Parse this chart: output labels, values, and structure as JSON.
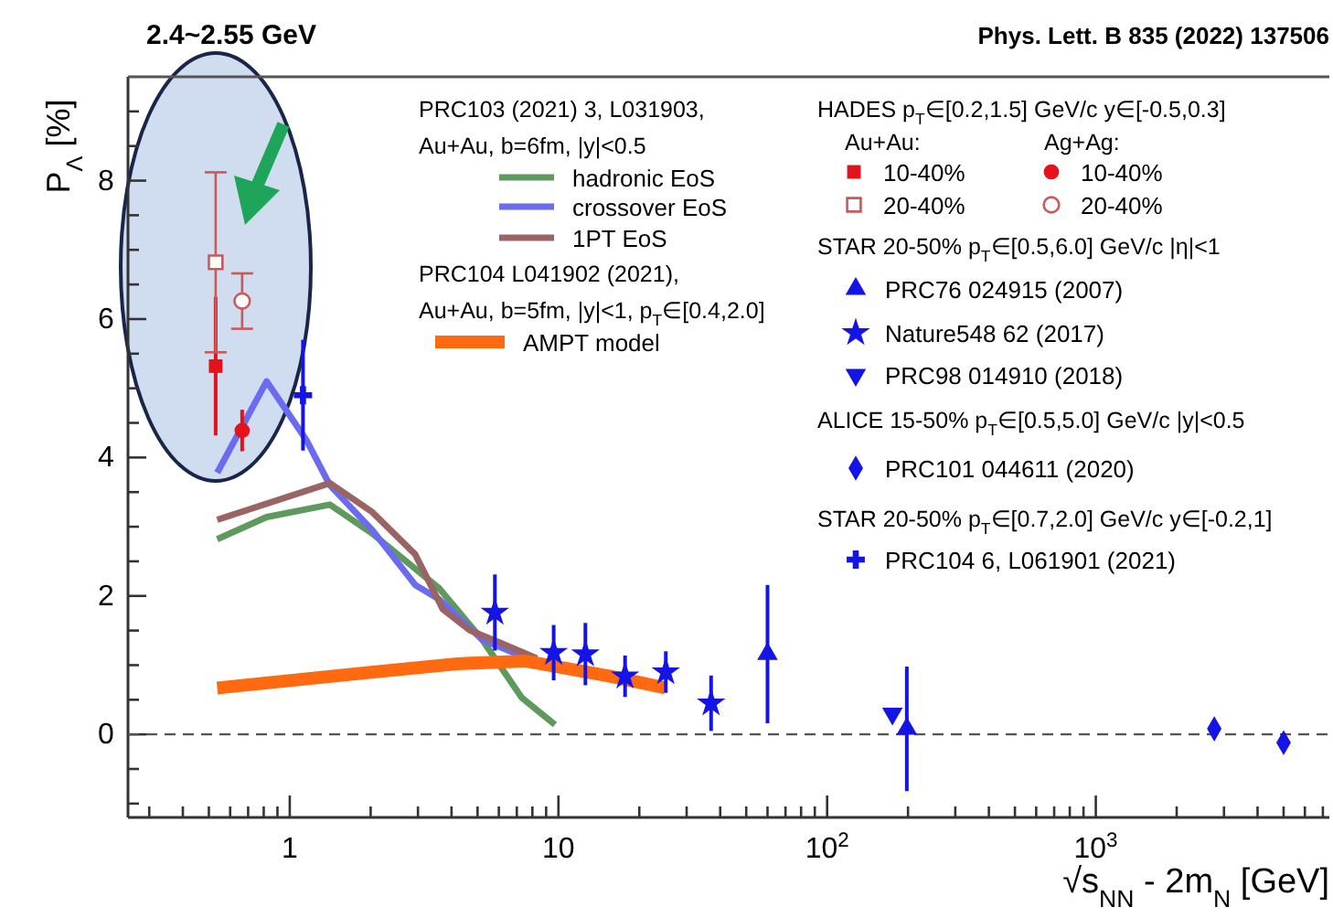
{
  "chart_data": {
    "type": "scatter",
    "xlabel": "√s$_{NN}$ - 2m$_{N}$ [GeV]",
    "ylabel": "P$_{Λ}$ [%]",
    "log": "x",
    "legend": "top right",
    "xlim": [
      0.25,
      7400
    ],
    "ylim": [
      -1.2,
      9.5
    ],
    "xticks": [
      {
        "value": 0.3,
        "label": null
      },
      {
        "value": 0.4,
        "label": null
      },
      {
        "value": 0.5,
        "label": null
      },
      {
        "value": 0.6,
        "label": null
      },
      {
        "value": 0.7,
        "label": null
      },
      {
        "value": 0.8,
        "label": null
      },
      {
        "value": 0.9,
        "label": null
      },
      1,
      {
        "value": 2,
        "label": null
      },
      {
        "value": 3,
        "label": null
      },
      {
        "value": 4,
        "label": null
      },
      {
        "value": 5,
        "label": null
      },
      {
        "value": 6,
        "label": null
      },
      {
        "value": 7,
        "label": null
      },
      {
        "value": 8,
        "label": null
      },
      {
        "value": 9,
        "label": null
      },
      10,
      {
        "value": 20,
        "label": null
      },
      {
        "value": 30,
        "label": null
      },
      {
        "value": 40,
        "label": null
      },
      {
        "value": 50,
        "label": null
      },
      {
        "value": 60,
        "label": null
      },
      {
        "value": 70,
        "label": null
      },
      {
        "value": 80,
        "label": null
      },
      {
        "value": 90,
        "label": null
      },
      {
        "value": 100,
        "label": "10$^{2}$"
      },
      {
        "value": 200,
        "label": null
      },
      {
        "value": 300,
        "label": null
      },
      {
        "value": 400,
        "label": null
      },
      {
        "value": 500,
        "label": null
      },
      {
        "value": 600,
        "label": null
      },
      {
        "value": 700,
        "label": null
      },
      {
        "value": 800,
        "label": null
      },
      {
        "value": 900,
        "label": null
      },
      {
        "value": 1000,
        "label": "10$^{3}$"
      },
      {
        "value": 2000,
        "label": null
      },
      {
        "value": 3000,
        "label": null
      },
      {
        "value": 4000,
        "label": null
      },
      {
        "value": 5000,
        "label": null
      },
      {
        "value": 6000,
        "label": null
      },
      {
        "value": 7000,
        "label": null
      }
    ],
    "yticks": [
      {
        "value": -1,
        "label": null
      },
      {
        "value": -0.5,
        "label": null
      },
      0,
      {
        "value": 0.5,
        "label": null
      },
      {
        "value": 1,
        "label": null
      },
      {
        "value": 1.5,
        "label": null
      },
      2,
      {
        "value": 2.5,
        "label": null
      },
      {
        "value": 3,
        "label": null
      },
      {
        "value": 3.5,
        "label": null
      },
      4,
      {
        "value": 4.5,
        "label": null
      },
      {
        "value": 5,
        "label": null
      },
      {
        "value": 5.5,
        "label": null
      },
      6,
      {
        "value": 6.5,
        "label": null
      },
      {
        "value": 7,
        "label": null
      },
      {
        "value": 7.5,
        "label": null
      },
      8,
      {
        "value": 8.5,
        "label": null
      },
      {
        "value": 9,
        "label": null
      }
    ],
    "ref_lines": [
      {
        "axis": "y",
        "value": 0,
        "label": null,
        "color": "#555555",
        "line_style": "dashed"
      }
    ],
    "annotations": [
      "2.4~2.55 GeV",
      "Phys. Lett. B 835 (2022) 137506",
      "PRC103 (2021) 3, L031903,",
      "Au+Au, b=6fm, |y|<0.5",
      "PRC104 L041902 (2021),",
      "Au+Au, b=5fm, |y|<1, p$_{T}$∈[0.4,2.0]",
      "HADES p$_{T}$∈[0.2,1.5] GeV/c y∈[-0.5,0.3]",
      "Au+Au:",
      "Ag+Ag:",
      "STAR 20-50% p$_{T}$∈[0.5,6.0] GeV/c |η|<1",
      "ALICE 15-50% p$_{T}$∈[0.5,5.0] GeV/c |y|<0.5",
      "STAR 20-50% p$_{T}$∈[0.7,2.0] GeV/c y∈[-0.2,1]"
    ],
    "series": [
      {
        "name": "hadronic EoS",
        "type": "line",
        "color": "#5e9a5e",
        "x": [
          0.537,
          0.82,
          1.41,
          2.03,
          3.6,
          5.2,
          7.3,
          9.7
        ],
        "values": [
          2.82,
          3.14,
          3.32,
          2.9,
          2.11,
          1.37,
          0.53,
          0.14
        ]
      },
      {
        "name": "crossover EoS",
        "type": "line",
        "color": "#6b6bf2",
        "x": [
          0.537,
          0.82,
          1.15,
          1.41,
          2.03,
          2.93,
          3.6,
          5.2,
          7.0,
          8.6
        ],
        "values": [
          3.78,
          5.1,
          4.26,
          3.6,
          2.95,
          2.16,
          1.95,
          1.37,
          1.16,
          1.03
        ]
      },
      {
        "name": "1PT EoS",
        "type": "line",
        "color": "#9a6464",
        "x": [
          0.537,
          1.41,
          2.03,
          2.93,
          3.71,
          4.69,
          6.1,
          8.3
        ],
        "values": [
          3.1,
          3.63,
          3.21,
          2.6,
          1.81,
          1.5,
          1.32,
          1.1
        ]
      },
      {
        "name": "AMPT model",
        "type": "line",
        "color": "#ff6a10",
        "x": [
          0.537,
          1.93,
          4.2,
          7.5,
          15.6,
          25
        ],
        "values": [
          0.67,
          0.89,
          1.02,
          1.06,
          0.84,
          0.67
        ]
      },
      {
        "name": "10-40%",
        "marker": "square",
        "color": "#e3121b",
        "x": [
          0.53
        ],
        "values": [
          5.32
        ],
        "errors": [
          1.0
        ]
      },
      {
        "name": "20-40%",
        "marker": "square",
        "color": "#c85a5a",
        "x": [
          0.53
        ],
        "values": [
          6.82
        ],
        "errors": [
          1.3
        ]
      },
      {
        "name": "10-40%",
        "marker": "circle",
        "color": "#e3121b",
        "x": [
          0.665
        ],
        "values": [
          4.39
        ],
        "errors": [
          0.3
        ]
      },
      {
        "name": "20-40%",
        "marker": "circle",
        "color": "#c85a5a",
        "x": [
          0.665
        ],
        "values": [
          6.26
        ],
        "errors": [
          0.4
        ]
      },
      {
        "name": "PRC76 024915 (2007)",
        "marker": "triangle",
        "color": "#1414e6",
        "x": [
          60,
          198
        ],
        "values": [
          1.16,
          0.08
        ],
        "errors": [
          1.0,
          0.9
        ]
      },
      {
        "name": "Nature548 62 (2017)",
        "marker": "star",
        "color": "#1414e6",
        "x": [
          5.8,
          9.6,
          12.6,
          17.7,
          25.1,
          37
        ],
        "values": [
          1.76,
          1.18,
          1.16,
          0.84,
          0.9,
          0.45
        ],
        "errors": [
          0.55,
          0.4,
          0.45,
          0.3,
          0.3,
          0.4
        ]
      },
      {
        "name": "PRC98 014910 (2018)",
        "marker": "triangle",
        "color": "#1414e6",
        "x": [
          175
        ],
        "values": [
          0.3
        ]
      },
      {
        "name": "PRC101 044611 (2020)",
        "marker": "diamond",
        "color": "#1414e6",
        "x": [
          2760,
          5000
        ],
        "values": [
          0.08,
          -0.12
        ]
      },
      {
        "name": "PRC104 6, L061901 (2021)",
        "marker": "cross",
        "color": "#1414e6",
        "x": [
          1.12
        ],
        "values": [
          4.9
        ],
        "errors": [
          0.8
        ]
      }
    ]
  }
}
